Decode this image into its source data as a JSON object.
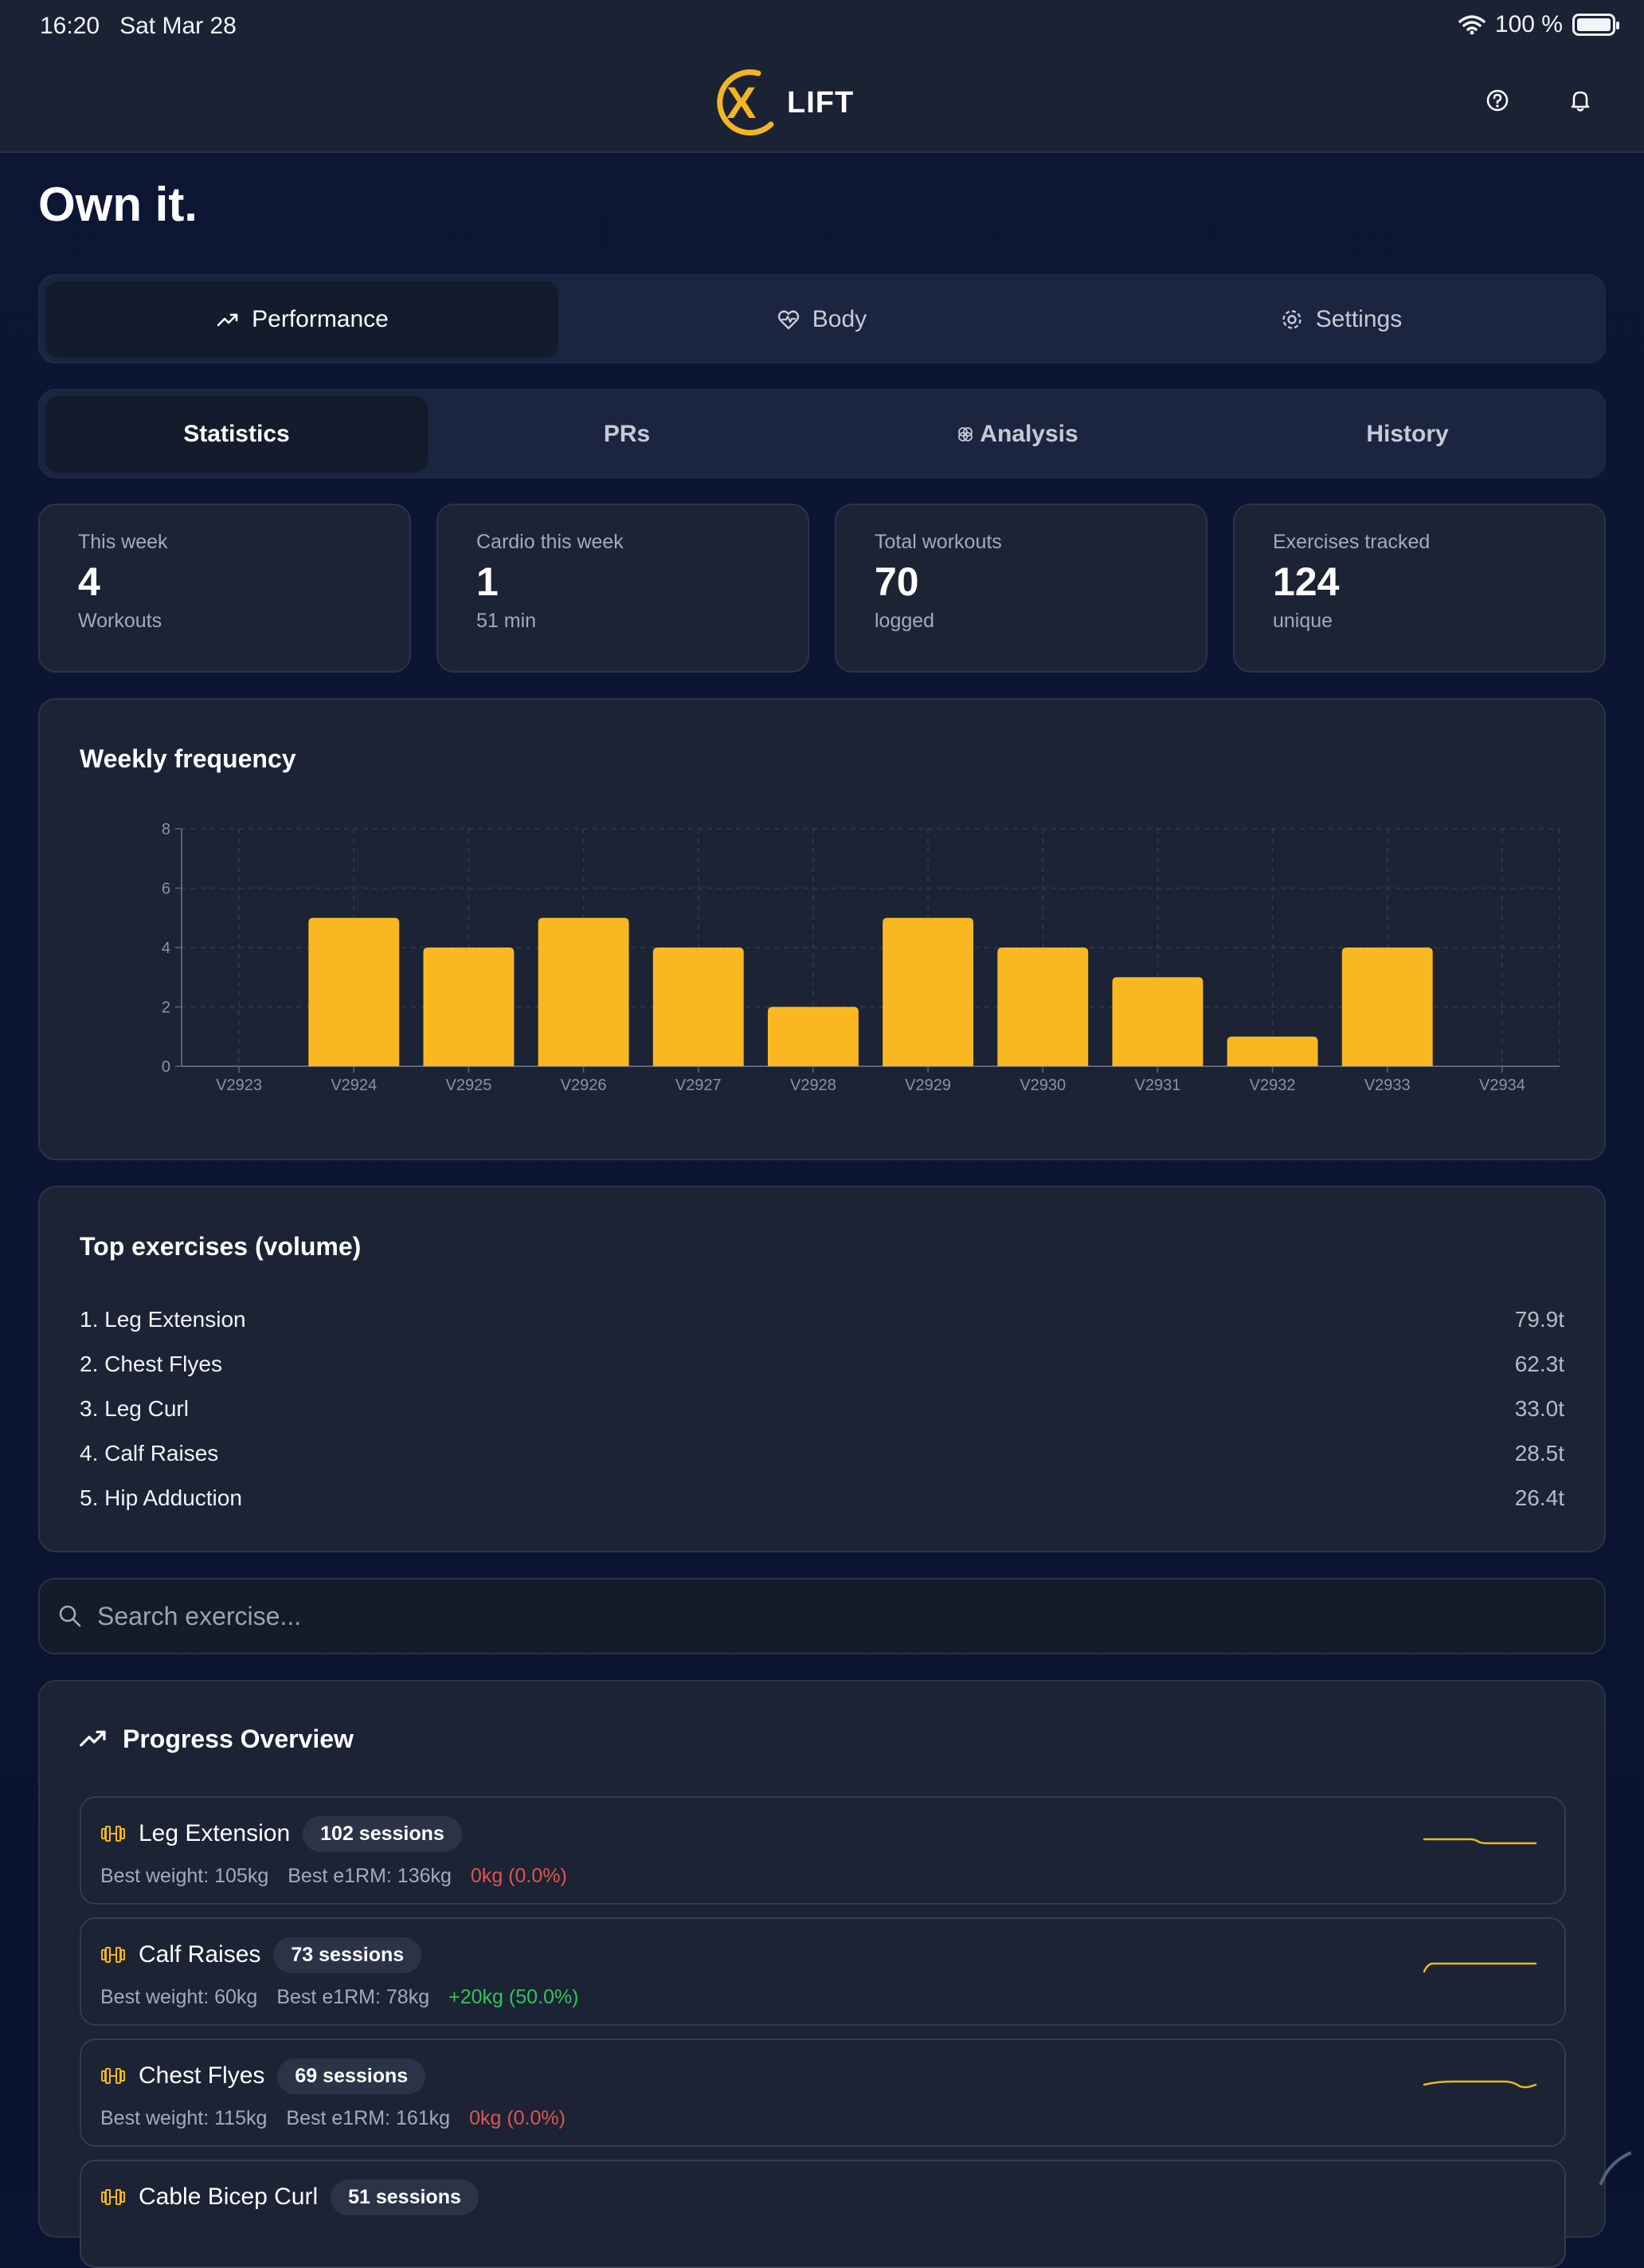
{
  "status": {
    "time": "16:20",
    "date": "Sat Mar 28",
    "battery": "100 %",
    "battery_level": 1.0
  },
  "brand": {
    "logo_letter": "X",
    "logo_text": "LIFT",
    "accent": "#f2b621"
  },
  "headline": "Own it.",
  "main_tabs": [
    {
      "label": "Performance",
      "icon": "trend-up-icon",
      "active": true
    },
    {
      "label": "Body",
      "icon": "heart-pulse-icon",
      "active": false
    },
    {
      "label": "Settings",
      "icon": "gear-icon",
      "active": false
    }
  ],
  "sub_tabs": [
    {
      "label": "Statistics",
      "active": true
    },
    {
      "label": "PRs",
      "active": false
    },
    {
      "label": "Analysis",
      "icon": "brain-icon",
      "active": false
    },
    {
      "label": "History",
      "active": false
    }
  ],
  "stats": [
    {
      "label": "This week",
      "value": "4",
      "sub": "Workouts"
    },
    {
      "label": "Cardio this week",
      "value": "1",
      "sub": "51 min"
    },
    {
      "label": "Total workouts",
      "value": "70",
      "sub": "logged"
    },
    {
      "label": "Exercises tracked",
      "value": "124",
      "sub": "unique"
    }
  ],
  "weekly_frequency": {
    "title": "Weekly frequency"
  },
  "chart_data": {
    "type": "bar",
    "title": "Weekly frequency",
    "categories": [
      "V2923",
      "V2924",
      "V2925",
      "V2926",
      "V2927",
      "V2928",
      "V2929",
      "V2930",
      "V2931",
      "V2932",
      "V2933",
      "V2934"
    ],
    "values": [
      0,
      5,
      4,
      5,
      4,
      2,
      5,
      4,
      3,
      1,
      4,
      0
    ],
    "ylim": [
      0,
      8
    ],
    "yticks": [
      0,
      2,
      4,
      6,
      8
    ],
    "grid": true,
    "bar_color": "#f9b822"
  },
  "top_exercises": {
    "title": "Top exercises (volume)",
    "items": [
      {
        "name": "1. Leg Extension",
        "volume": "79.9t"
      },
      {
        "name": "2. Chest Flyes",
        "volume": "62.3t"
      },
      {
        "name": "3. Leg Curl",
        "volume": "33.0t"
      },
      {
        "name": "4. Calf Raises",
        "volume": "28.5t"
      },
      {
        "name": "5. Hip Adduction",
        "volume": "26.4t"
      }
    ]
  },
  "search": {
    "placeholder": "Search exercise..."
  },
  "progress": {
    "title": "Progress Overview",
    "items": [
      {
        "name": "Leg Extension",
        "sessions": "102 sessions",
        "best_weight": "Best weight: 105kg",
        "best_e1rm": "Best e1RM: 136kg",
        "change": "0kg (0.0%)",
        "change_status": "neg"
      },
      {
        "name": "Calf Raises",
        "sessions": "73 sessions",
        "best_weight": "Best weight: 60kg",
        "best_e1rm": "Best e1RM: 78kg",
        "change": "+20kg (50.0%)",
        "change_status": "pos"
      },
      {
        "name": "Chest Flyes",
        "sessions": "69 sessions",
        "best_weight": "Best weight: 115kg",
        "best_e1rm": "Best e1RM: 161kg",
        "change": "0kg (0.0%)",
        "change_status": "neg"
      },
      {
        "name": "Cable Bicep Curl",
        "sessions": "51 sessions"
      }
    ]
  }
}
